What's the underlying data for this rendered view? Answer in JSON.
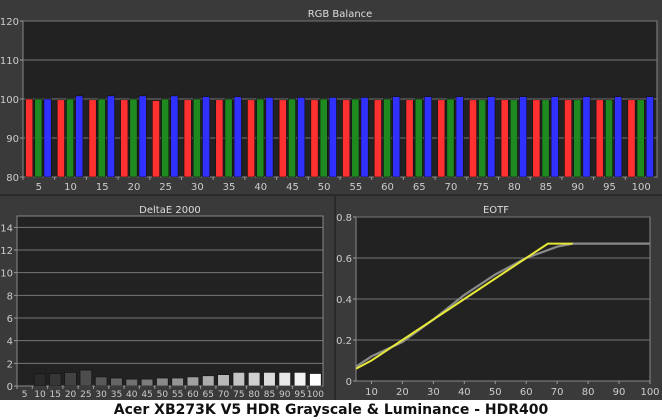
{
  "caption": "Acer XB273K V5 HDR Grayscale & Luminance - HDR400",
  "chart_data": [
    {
      "type": "bar",
      "title": "RGB Balance",
      "categories": [
        "5",
        "10",
        "15",
        "20",
        "25",
        "30",
        "35",
        "40",
        "45",
        "50",
        "55",
        "60",
        "65",
        "70",
        "75",
        "80",
        "85",
        "90",
        "95",
        "100"
      ],
      "ylim": [
        80,
        120
      ],
      "yticks": [
        80,
        90,
        100,
        110,
        120
      ],
      "grid": true,
      "series": [
        {
          "color": "#ff3030",
          "values": [
            100,
            99.8,
            99.8,
            99.8,
            99.6,
            99.8,
            99.8,
            99.8,
            99.8,
            99.8,
            99.8,
            99.8,
            99.8,
            99.8,
            99.8,
            99.8,
            99.8,
            99.8,
            99.8,
            99.8
          ]
        },
        {
          "color": "#1f8a1f",
          "values": [
            100,
            100,
            100,
            100,
            100,
            100,
            100,
            100,
            100,
            100,
            100,
            100,
            100,
            100,
            99.8,
            99.8,
            99.8,
            99.8,
            99.8,
            99.8
          ]
        },
        {
          "color": "#3030ff",
          "values": [
            100,
            100.8,
            100.8,
            100.8,
            100.8,
            100.6,
            100.6,
            100.4,
            100.4,
            100.4,
            100.4,
            100.6,
            100.6,
            100.6,
            100.6,
            100.6,
            100.6,
            100.6,
            100.6,
            100.6
          ]
        }
      ]
    },
    {
      "type": "bar",
      "title": "DeltaE 2000",
      "categories": [
        "5",
        "10",
        "15",
        "20",
        "25",
        "30",
        "35",
        "40",
        "45",
        "50",
        "55",
        "60",
        "65",
        "70",
        "75",
        "80",
        "85",
        "90",
        "95",
        "100"
      ],
      "values": [
        0,
        1.1,
        1.1,
        1.2,
        1.4,
        0.8,
        0.7,
        0.6,
        0.6,
        0.7,
        0.7,
        0.8,
        0.9,
        1.0,
        1.2,
        1.2,
        1.2,
        1.2,
        1.2,
        1.1
      ],
      "ylim": [
        0,
        15
      ],
      "yticks": [
        0,
        2,
        4,
        6,
        8,
        10,
        12,
        14
      ],
      "grid": true
    },
    {
      "type": "line",
      "title": "EOTF",
      "xlim": [
        5,
        100
      ],
      "xticks": [
        10,
        20,
        30,
        40,
        50,
        60,
        70,
        80,
        90,
        100
      ],
      "ylim": [
        0,
        0.8
      ],
      "yticks": [
        0,
        0.2,
        0.4,
        0.6,
        0.8
      ],
      "grid": true,
      "series": [
        {
          "color": "#8a8a8a",
          "x": [
            5,
            10,
            20,
            30,
            40,
            50,
            60,
            70,
            75,
            100
          ],
          "y": [
            0.07,
            0.12,
            0.19,
            0.3,
            0.42,
            0.52,
            0.6,
            0.655,
            0.67,
            0.67
          ]
        },
        {
          "color": "#e8e83a",
          "x": [
            5,
            10,
            20,
            30,
            40,
            50,
            60,
            67,
            75
          ],
          "y": [
            0.06,
            0.1,
            0.2,
            0.3,
            0.4,
            0.5,
            0.6,
            0.67,
            0.67
          ]
        }
      ]
    }
  ]
}
